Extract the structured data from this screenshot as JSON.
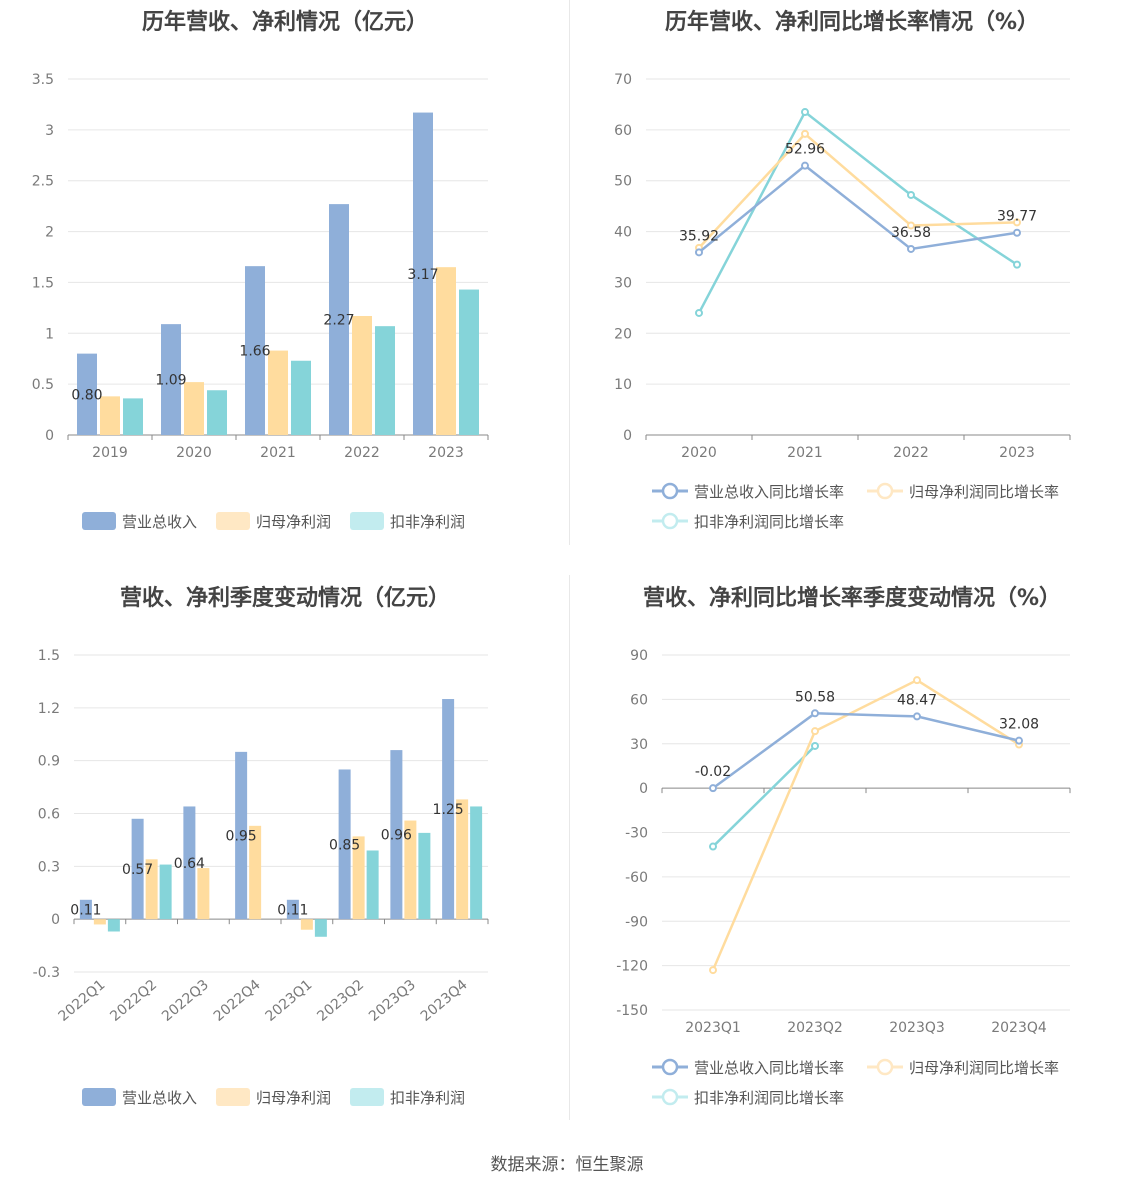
{
  "source": "数据来源：恒生聚源",
  "colors": {
    "revenue": "#8fafd9",
    "netprofit": "#ffdc9e",
    "deducted": "#85d4d9"
  },
  "chart_data": [
    {
      "type": "bar",
      "title": "历年营收、净利情况（亿元）",
      "categories": [
        "2019",
        "2020",
        "2021",
        "2022",
        "2023"
      ],
      "ylim": [
        0,
        3.5
      ],
      "yticks": [
        "0",
        "0.5",
        "1",
        "1.5",
        "2",
        "2.5",
        "3",
        "3.5"
      ],
      "series": [
        {
          "name": "营业总收入",
          "values": [
            0.8,
            1.09,
            1.66,
            2.27,
            3.17
          ],
          "labels": [
            "0.80",
            "1.09",
            "1.66",
            "2.27",
            "3.17"
          ]
        },
        {
          "name": "归母净利润",
          "values": [
            0.38,
            0.52,
            0.83,
            1.17,
            1.65
          ]
        },
        {
          "name": "扣非净利润",
          "values": [
            0.36,
            0.44,
            0.73,
            1.07,
            1.43
          ]
        }
      ],
      "legend": "bottom",
      "grid": true
    },
    {
      "type": "line",
      "title": "历年营收、净利同比增长率情况（%）",
      "categories": [
        "2020",
        "2021",
        "2022",
        "2023"
      ],
      "ylim": [
        0,
        70
      ],
      "yticks": [
        "0",
        "10",
        "20",
        "30",
        "40",
        "50",
        "60",
        "70"
      ],
      "series": [
        {
          "name": "营业总收入同比增长率",
          "values": [
            35.92,
            52.96,
            36.58,
            39.77
          ],
          "labels": [
            "35.92",
            "52.96",
            "36.58",
            "39.77"
          ]
        },
        {
          "name": "归母净利润同比增长率",
          "values": [
            36.8,
            59.2,
            41.2,
            41.8
          ]
        },
        {
          "name": "扣非净利润同比增长率",
          "values": [
            24.0,
            63.5,
            47.2,
            33.5
          ]
        }
      ],
      "legend": "bottom",
      "grid": true
    },
    {
      "type": "bar",
      "title": "营收、净利季度变动情况（亿元）",
      "categories": [
        "2022Q1",
        "2022Q2",
        "2022Q3",
        "2022Q4",
        "2023Q1",
        "2023Q2",
        "2023Q3",
        "2023Q4"
      ],
      "ylim": [
        -0.3,
        1.5
      ],
      "yticks": [
        "-0.3",
        "0",
        "0.3",
        "0.6",
        "0.9",
        "1.2",
        "1.5"
      ],
      "series": [
        {
          "name": "营业总收入",
          "values": [
            0.11,
            0.57,
            0.64,
            0.95,
            0.11,
            0.85,
            0.96,
            1.25
          ],
          "labels": [
            "0.11",
            "0.57",
            "0.64",
            "0.95",
            "0.11",
            "0.85",
            "0.96",
            "1.25"
          ]
        },
        {
          "name": "归母净利润",
          "values": [
            -0.03,
            0.34,
            0.29,
            0.53,
            -0.06,
            0.47,
            0.56,
            0.68
          ]
        },
        {
          "name": "扣非净利润",
          "values": [
            -0.07,
            0.31,
            0.0,
            0.0,
            -0.1,
            0.39,
            0.49,
            0.64
          ]
        }
      ],
      "legend": "bottom",
      "grid": true
    },
    {
      "type": "line",
      "title": "营收、净利同比增长率季度变动情况（%）",
      "categories": [
        "2023Q1",
        "2023Q2",
        "2023Q3",
        "2023Q4"
      ],
      "ylim": [
        -150,
        90
      ],
      "yticks": [
        "-150",
        "-120",
        "-90",
        "-60",
        "-30",
        "0",
        "30",
        "60",
        "90"
      ],
      "series": [
        {
          "name": "营业总收入同比增长率",
          "values": [
            -0.02,
            50.58,
            48.47,
            32.08
          ],
          "labels": [
            "-0.02",
            "50.58",
            "48.47",
            "32.08"
          ]
        },
        {
          "name": "归母净利润同比增长率",
          "values": [
            -123.0,
            38.5,
            73.0,
            29.5
          ]
        },
        {
          "name": "扣非净利润同比增长率",
          "values": [
            -39.5,
            28.5,
            null,
            null
          ]
        }
      ],
      "legend": "bottom",
      "grid": true
    }
  ]
}
